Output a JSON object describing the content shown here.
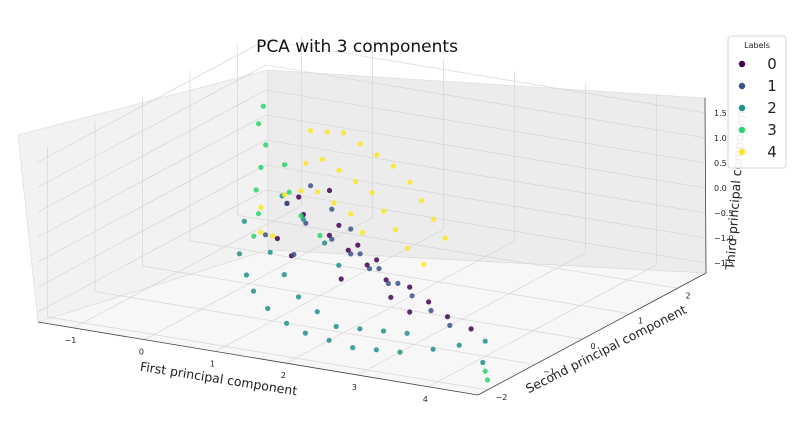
{
  "chart_data": {
    "type": "scatter",
    "title": "PCA with 3 components",
    "xlabel": "First principal component",
    "ylabel": "Second principal component",
    "zlabel": "Third principal component",
    "x_ticks": [
      "−1",
      "0",
      "1",
      "2",
      "3",
      "4"
    ],
    "y_ticks": [
      "−2",
      "−1",
      "0",
      "1",
      "2"
    ],
    "z_ticks": [
      "−1.5",
      "−1.0",
      "−0.5",
      "0.0",
      "0.5",
      "1.0",
      "1.5"
    ],
    "xlim": [
      -1.5,
      4.7
    ],
    "ylim": [
      -2.2,
      2.6
    ],
    "zlim": [
      -1.7,
      1.7
    ],
    "legend": {
      "title": "Labels",
      "placement": "top-right",
      "entries": [
        {
          "label": "0",
          "color": "#440154"
        },
        {
          "label": "1",
          "color": "#3b528b"
        },
        {
          "label": "2",
          "color": "#21918c"
        },
        {
          "label": "3",
          "color": "#2bd46e"
        },
        {
          "label": "4",
          "color": "#fde725"
        }
      ]
    },
    "grid": true,
    "series": [
      {
        "name": "0",
        "color": "#440154",
        "points": [
          [
            0.3,
            0.6,
            -0.2
          ],
          [
            0.5,
            0.4,
            -0.4
          ],
          [
            1.0,
            0.2,
            -0.6
          ],
          [
            1.4,
            0.0,
            -0.7
          ],
          [
            1.8,
            -0.2,
            -0.8
          ],
          [
            2.2,
            -0.4,
            -0.9
          ],
          [
            2.6,
            -0.5,
            -0.9
          ],
          [
            3.0,
            -0.7,
            -1.0
          ],
          [
            3.4,
            -0.9,
            -1.1
          ],
          [
            0.0,
            0.8,
            -0.5
          ],
          [
            0.8,
            0.5,
            0.1
          ],
          [
            1.2,
            0.1,
            -0.3
          ],
          [
            1.6,
            -0.1,
            -0.5
          ],
          [
            2.0,
            -0.3,
            -0.6
          ],
          [
            0.2,
            0.3,
            -0.9
          ],
          [
            0.6,
            0.0,
            -1.0
          ],
          [
            2.8,
            -0.8,
            -1.2
          ],
          [
            3.8,
            -1.0,
            -1.2
          ],
          [
            1.5,
            -0.3,
            -1.1
          ],
          [
            2.4,
            -0.6,
            -1.1
          ]
        ]
      },
      {
        "name": "1",
        "color": "#3b528b",
        "points": [
          [
            0.2,
            0.5,
            -0.3
          ],
          [
            0.6,
            0.3,
            -0.5
          ],
          [
            1.1,
            0.1,
            -0.6
          ],
          [
            1.5,
            -0.1,
            -0.7
          ],
          [
            1.9,
            -0.3,
            -0.8
          ],
          [
            2.3,
            -0.5,
            -0.9
          ],
          [
            2.7,
            -0.6,
            -1.0
          ],
          [
            3.1,
            -0.8,
            -1.1
          ],
          [
            3.5,
            -1.0,
            -1.2
          ],
          [
            0.4,
            0.7,
            0.0
          ],
          [
            0.9,
            0.4,
            -0.2
          ],
          [
            1.3,
            0.2,
            -0.4
          ],
          [
            1.7,
            -0.2,
            -0.6
          ],
          [
            2.1,
            -0.4,
            -0.7
          ],
          [
            2.5,
            -0.6,
            -0.8
          ],
          [
            0.1,
            0.2,
            -0.8
          ],
          [
            0.7,
            -0.1,
            -0.9
          ]
        ]
      },
      {
        "name": "2",
        "color": "#21918c",
        "points": [
          [
            -0.2,
            0.2,
            -0.6
          ],
          [
            0.0,
            -0.2,
            -1.0
          ],
          [
            0.3,
            -0.5,
            -1.2
          ],
          [
            0.6,
            -0.8,
            -1.3
          ],
          [
            1.0,
            -1.1,
            -1.4
          ],
          [
            1.4,
            -1.3,
            -1.5
          ],
          [
            1.8,
            -1.5,
            -1.5
          ],
          [
            2.2,
            -1.6,
            -1.5
          ],
          [
            2.6,
            -1.7,
            -1.5
          ],
          [
            3.0,
            -1.8,
            -1.4
          ],
          [
            3.4,
            -1.9,
            -1.3
          ],
          [
            3.8,
            -1.8,
            -1.2
          ],
          [
            4.1,
            -1.7,
            -1.1
          ],
          [
            4.4,
            -1.6,
            -1.0
          ],
          [
            0.5,
            -0.3,
            -0.8
          ],
          [
            0.9,
            -0.6,
            -1.0
          ],
          [
            1.3,
            -0.9,
            -1.2
          ],
          [
            1.7,
            -1.1,
            -1.3
          ],
          [
            2.1,
            -1.3,
            -1.4
          ],
          [
            2.5,
            -1.4,
            -1.3
          ],
          [
            2.9,
            -1.5,
            -1.2
          ],
          [
            3.3,
            -1.6,
            -1.1
          ],
          [
            0.2,
            0.4,
            -0.1
          ],
          [
            0.7,
            0.1,
            -0.3
          ],
          [
            1.2,
            -0.2,
            -0.5
          ],
          [
            1.6,
            -0.5,
            -0.7
          ],
          [
            4.5,
            -1.8,
            -1.3
          ]
        ]
      },
      {
        "name": "3",
        "color": "#2bd46e",
        "points": [
          [
            -0.4,
            0.9,
            1.3
          ],
          [
            -0.4,
            0.8,
            1.0
          ],
          [
            -0.3,
            0.8,
            0.6
          ],
          [
            -0.3,
            0.7,
            0.2
          ],
          [
            -0.3,
            0.6,
            -0.2
          ],
          [
            -0.2,
            0.5,
            -0.6
          ],
          [
            -0.2,
            0.4,
            -1.0
          ],
          [
            0.1,
            0.6,
            0.4
          ],
          [
            0.3,
            0.4,
            0.0
          ],
          [
            0.6,
            0.2,
            -0.3
          ],
          [
            1.0,
            0.0,
            -0.5
          ],
          [
            4.6,
            -1.9,
            -1.4
          ],
          [
            4.7,
            -2.0,
            -1.5
          ]
        ]
      },
      {
        "name": "4",
        "color": "#fde725",
        "points": [
          [
            0.2,
            1.0,
            0.9
          ],
          [
            0.5,
            0.9,
            1.0
          ],
          [
            0.8,
            0.8,
            1.1
          ],
          [
            1.1,
            0.7,
            1.0
          ],
          [
            1.4,
            0.6,
            0.9
          ],
          [
            1.7,
            0.5,
            0.8
          ],
          [
            2.0,
            0.4,
            0.6
          ],
          [
            2.3,
            0.2,
            0.4
          ],
          [
            2.6,
            0.0,
            0.2
          ],
          [
            2.9,
            -0.2,
            0.0
          ],
          [
            0.4,
            0.6,
            0.5
          ],
          [
            0.7,
            0.5,
            0.7
          ],
          [
            1.0,
            0.4,
            0.6
          ],
          [
            1.3,
            0.3,
            0.5
          ],
          [
            1.6,
            0.2,
            0.4
          ],
          [
            1.9,
            0.0,
            0.2
          ],
          [
            2.2,
            -0.2,
            0.0
          ],
          [
            2.5,
            -0.4,
            -0.2
          ],
          [
            0.3,
            0.3,
            0.0
          ],
          [
            0.6,
            0.2,
            0.2
          ],
          [
            0.9,
            0.1,
            0.3
          ],
          [
            1.2,
            0.0,
            0.2
          ],
          [
            1.5,
            -0.1,
            0.1
          ],
          [
            1.8,
            -0.3,
            -0.1
          ],
          [
            -0.1,
            0.4,
            -0.4
          ],
          [
            0.1,
            0.1,
            -0.7
          ],
          [
            0.4,
            -0.1,
            -0.6
          ],
          [
            2.8,
            -0.5,
            -0.4
          ]
        ]
      }
    ]
  }
}
